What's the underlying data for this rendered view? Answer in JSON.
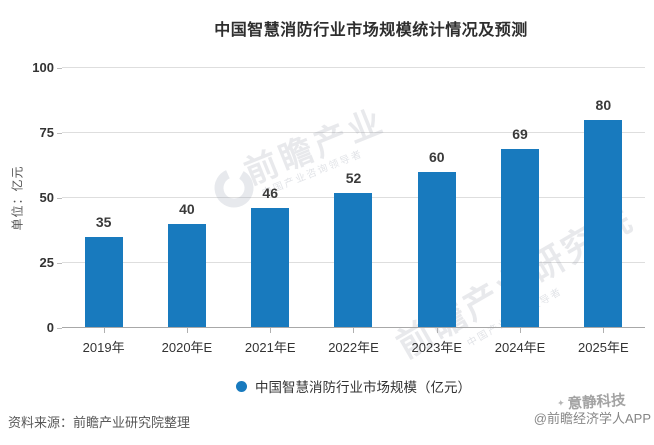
{
  "chart_data": {
    "type": "bar",
    "title": "中国智慧消防行业市场规模统计情况及预测",
    "ylabel": "单位：亿元",
    "xlabel": "",
    "categories": [
      "2019年",
      "2020年E",
      "2021年E",
      "2022年E",
      "2023年E",
      "2024年E",
      "2025年E"
    ],
    "values": [
      35,
      40,
      46,
      52,
      60,
      69,
      80
    ],
    "ylim": [
      0,
      100
    ],
    "yticks": [
      0,
      25,
      50,
      75,
      100
    ],
    "grid": "horizontal",
    "legend_position": "bottom",
    "bar_color": "#187ABE",
    "legend": {
      "label": "中国智慧消防行业市场规模（亿元）"
    }
  },
  "footer": {
    "source": "资料来源：前瞻产业研究院整理",
    "attribution": "@前瞻经济学人APP"
  },
  "watermarks": {
    "diagonal_primary": "前瞻产业",
    "diagonal_secondary": "前瞻产业研究院",
    "sub_caption": "中国产业咨询领导者",
    "corner_brand": "意静科技"
  }
}
